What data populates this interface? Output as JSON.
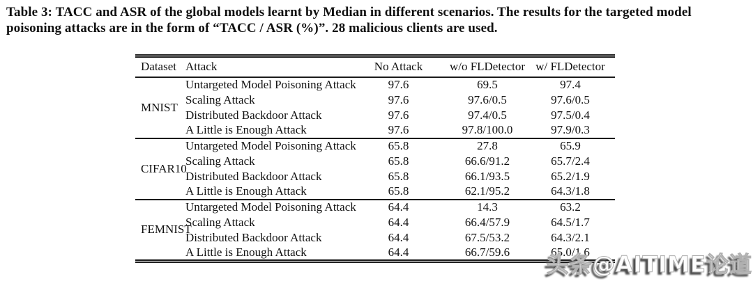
{
  "caption": {
    "text": "Table 3: TACC and ASR of the global models learnt by Median in different scenarios. The results for the targeted model poisoning attacks are in the form of “TACC / ASR (%)”. 28 malicious clients are used."
  },
  "table": {
    "columns": [
      "Dataset",
      "Attack",
      "No Attack",
      "w/o FLDetector",
      "w/ FLDetector"
    ],
    "groups": [
      {
        "dataset": "MNIST",
        "rows": [
          {
            "attack": "Untargeted Model Poisoning Attack",
            "no_attack": "97.6",
            "wo_fldetector": "69.5",
            "w_fldetector": "97.4"
          },
          {
            "attack": "Scaling Attack",
            "no_attack": "97.6",
            "wo_fldetector": "97.6/0.5",
            "w_fldetector": "97.6/0.5"
          },
          {
            "attack": "Distributed Backdoor Attack",
            "no_attack": "97.6",
            "wo_fldetector": "97.4/0.5",
            "w_fldetector": "97.5/0.4"
          },
          {
            "attack": "A Little is Enough Attack",
            "no_attack": "97.6",
            "wo_fldetector": "97.8/100.0",
            "w_fldetector": "97.9/0.3"
          }
        ]
      },
      {
        "dataset": "CIFAR10",
        "rows": [
          {
            "attack": "Untargeted Model Poisoning Attack",
            "no_attack": "65.8",
            "wo_fldetector": "27.8",
            "w_fldetector": "65.9"
          },
          {
            "attack": "Scaling Attack",
            "no_attack": "65.8",
            "wo_fldetector": "66.6/91.2",
            "w_fldetector": "65.7/2.4"
          },
          {
            "attack": "Distributed Backdoor Attack",
            "no_attack": "65.8",
            "wo_fldetector": "66.1/93.5",
            "w_fldetector": "65.2/1.9"
          },
          {
            "attack": "A Little is Enough Attack",
            "no_attack": "65.8",
            "wo_fldetector": "62.1/95.2",
            "w_fldetector": "64.3/1.8"
          }
        ]
      },
      {
        "dataset": "FEMNIST",
        "rows": [
          {
            "attack": "Untargeted Model Poisoning Attack",
            "no_attack": "64.4",
            "wo_fldetector": "14.3",
            "w_fldetector": "63.2"
          },
          {
            "attack": "Scaling Attack",
            "no_attack": "64.4",
            "wo_fldetector": "66.4/57.9",
            "w_fldetector": "64.5/1.7"
          },
          {
            "attack": "Distributed Backdoor Attack",
            "no_attack": "64.4",
            "wo_fldetector": "67.5/53.2",
            "w_fldetector": "64.3/2.1"
          },
          {
            "attack": "A Little is Enough Attack",
            "no_attack": "64.4",
            "wo_fldetector": "66.7/59.6",
            "w_fldetector": "65.0/1.6"
          }
        ]
      }
    ]
  },
  "watermark": {
    "text": "头条@AITIME论道"
  }
}
